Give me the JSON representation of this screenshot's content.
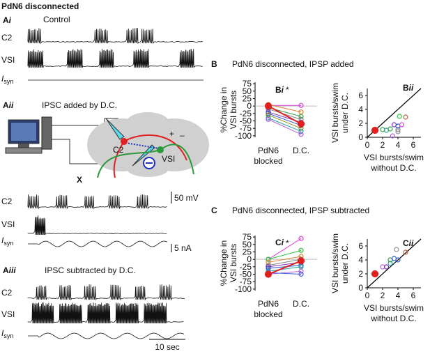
{
  "header": {
    "title": "PdN6 disconnected"
  },
  "panel_ai": {
    "label": {
      "letter": "A",
      "sub": "i"
    },
    "title": "Control",
    "traces": [
      {
        "base": "C2"
      },
      {
        "base": "VSI"
      },
      {
        "base": "I",
        "sub": "syn"
      }
    ]
  },
  "panel_aii": {
    "label": {
      "letter": "A",
      "sub": "ii"
    },
    "title": "IPSC added by D.C.",
    "diagram": {
      "c2": "C2",
      "vsi": "VSI",
      "plus": "+",
      "minus": "–",
      "x": "X"
    },
    "traces": [
      {
        "base": "C2"
      },
      {
        "base": "VSI"
      },
      {
        "base": "I",
        "sub": "syn"
      }
    ],
    "scale_v": "50 mV",
    "scale_i": "5 nA"
  },
  "panel_aiii": {
    "label": {
      "letter": "A",
      "sub": "iii"
    },
    "title": "IPSC subtracted by D.C.",
    "traces": [
      {
        "base": "C2"
      },
      {
        "base": "VSI"
      },
      {
        "base": "I",
        "sub": "syn"
      }
    ],
    "scale_t": "10 sec"
  },
  "panel_b": {
    "label": "B",
    "title": "PdN6 disconnected, IPSP added"
  },
  "panel_c": {
    "label": "C",
    "title": "PdN6 disconnected, IPSP subtracted"
  },
  "chart_data": [
    {
      "type": "paired",
      "panel_label": {
        "letter": "B",
        "sub": "i"
      },
      "ylabel": [
        "%Change in",
        "VSI bursts"
      ],
      "categories": [
        "PdN6 blocked",
        "D.C."
      ],
      "annotation": "*",
      "ylim": [
        -105,
        80
      ],
      "yticks": [
        75,
        50,
        25,
        0,
        -25,
        -50,
        -75,
        -100
      ],
      "series": [
        {
          "color": "#e040e0",
          "values": [
            2,
            2
          ]
        },
        {
          "color": "#e08030",
          "values": [
            5,
            -20
          ]
        },
        {
          "color": "#30a040",
          "values": [
            -5,
            -35
          ]
        },
        {
          "color": "#808080",
          "values": [
            -10,
            -45
          ]
        },
        {
          "color": "#8030c0",
          "values": [
            -20,
            -55
          ]
        },
        {
          "color": "#3050d0",
          "values": [
            -25,
            -65
          ]
        },
        {
          "color": "#909020",
          "values": [
            -30,
            -75
          ]
        },
        {
          "color": "#20a0a0",
          "values": [
            -40,
            -85
          ]
        },
        {
          "color": "#b060e0",
          "values": [
            -45,
            -95
          ]
        },
        {
          "color": "#e02020",
          "values": [
            0,
            -60
          ]
        }
      ]
    },
    {
      "type": "scatter",
      "panel_label": {
        "letter": "B",
        "sub": "ii"
      },
      "ylabel": [
        "VSI bursts/swim",
        "under D.C."
      ],
      "xlabel": [
        "VSI bursts/swim",
        "without D.C."
      ],
      "xlim": [
        0,
        7
      ],
      "ylim": [
        0,
        7
      ],
      "xticks": [
        0,
        2,
        4,
        6
      ],
      "yticks": [
        0,
        2,
        4,
        6
      ],
      "identity_line": true,
      "x": [
        1,
        2,
        2.5,
        3,
        3.3,
        3.5,
        4,
        4,
        4.2,
        4.5,
        5,
        4
      ],
      "y": [
        1,
        1.1,
        1,
        1.2,
        0.2,
        1.8,
        1.1,
        1.6,
        3,
        1.8,
        2.9,
        0.8
      ],
      "colors": [
        "#e02020",
        "#30a040",
        "#20a0a0",
        "#30a040",
        "#b060e0",
        "#8030c0",
        "#808080",
        "#3050d0",
        "#30c040",
        "#e040e0",
        "#c06040",
        "#909090"
      ]
    },
    {
      "type": "paired",
      "panel_label": {
        "letter": "C",
        "sub": "i"
      },
      "ylabel": [
        "%Change in",
        "VSI bursts"
      ],
      "categories": [
        "PdN6 blocked",
        "D.C."
      ],
      "annotation": "*",
      "ylim": [
        -105,
        80
      ],
      "yticks": [
        75,
        50,
        25,
        0,
        -25,
        -50,
        -75,
        -100
      ],
      "series": [
        {
          "color": "#e040e0",
          "values": [
            0,
            70
          ]
        },
        {
          "color": "#30c040",
          "values": [
            0,
            30
          ]
        },
        {
          "color": "#e08030",
          "values": [
            -10,
            10
          ]
        },
        {
          "color": "#808080",
          "values": [
            -20,
            0
          ]
        },
        {
          "color": "#8030c0",
          "values": [
            -25,
            -10
          ]
        },
        {
          "color": "#3050d0",
          "values": [
            -30,
            -20
          ]
        },
        {
          "color": "#20a0a0",
          "values": [
            -40,
            -25
          ]
        },
        {
          "color": "#b060e0",
          "values": [
            -50,
            -40
          ]
        },
        {
          "color": "#4060e0",
          "values": [
            -45,
            -50
          ]
        },
        {
          "color": "#e02020",
          "values": [
            -50,
            -5
          ]
        }
      ]
    },
    {
      "type": "scatter",
      "panel_label": {
        "letter": "C",
        "sub": "ii"
      },
      "ylabel": [
        "VSI bursts/swim",
        "under D.C."
      ],
      "xlabel": [
        "VSI bursts/swim",
        "without D.C."
      ],
      "xlim": [
        0,
        7
      ],
      "ylim": [
        0,
        7
      ],
      "xticks": [
        0,
        2,
        4,
        6
      ],
      "yticks": [
        0,
        2,
        4,
        6
      ],
      "identity_line": true,
      "x": [
        1,
        2,
        2.5,
        3,
        3,
        3.5,
        3.8,
        4,
        5
      ],
      "y": [
        2,
        3,
        3,
        3.5,
        4,
        4.2,
        5.5,
        4,
        5.1
      ],
      "colors": [
        "#e02020",
        "#b060e0",
        "#8030c0",
        "#20a0a0",
        "#30a040",
        "#3050d0",
        "#909090",
        "#3050d0",
        "#c06040"
      ]
    }
  ]
}
